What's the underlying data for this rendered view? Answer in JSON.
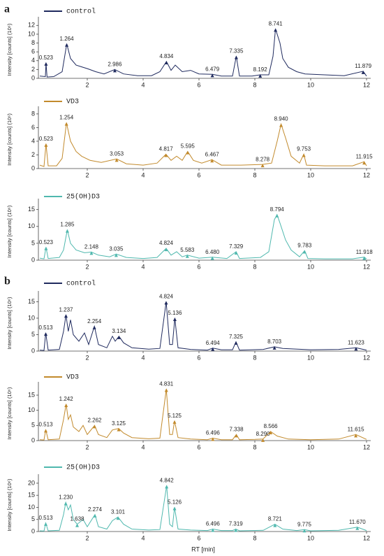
{
  "chart_data": [
    {
      "type": "line",
      "panel_label": "a",
      "ylabel": "Intensity [counts] (10⁶)",
      "series": [
        {
          "name": "control",
          "color": "#1f2a5e",
          "x": [
            0.3,
            0.5,
            0.523,
            0.56,
            0.8,
            1.1,
            1.264,
            1.4,
            1.6,
            1.8,
            2.0,
            2.3,
            2.6,
            2.986,
            3.3,
            3.8,
            4.3,
            4.6,
            4.834,
            5.0,
            5.15,
            5.4,
            5.7,
            6.0,
            6.479,
            6.8,
            7.2,
            7.335,
            7.45,
            7.9,
            8.192,
            8.5,
            8.65,
            8.741,
            8.9,
            9.0,
            9.2,
            9.5,
            9.8,
            10.5,
            11.2,
            11.879,
            12
          ],
          "values": [
            0.5,
            0.4,
            3.5,
            0.3,
            0.4,
            1.5,
            7.8,
            4.5,
            3.0,
            2.6,
            2.2,
            1.5,
            1.0,
            2.0,
            1.0,
            0.6,
            0.6,
            1.5,
            3.8,
            1.8,
            3.0,
            1.5,
            1.8,
            1.0,
            0.9,
            0.5,
            0.5,
            5.0,
            0.5,
            0.5,
            0.8,
            0.8,
            5.0,
            11.2,
            8.0,
            4.5,
            2.5,
            1.5,
            1.0,
            0.8,
            0.6,
            1.6,
            0.5
          ]
        }
      ],
      "peaks": [
        {
          "x": 0.523,
          "label": "0.523",
          "y": 3.5
        },
        {
          "x": 1.264,
          "label": "1.264",
          "y": 7.8
        },
        {
          "x": 2.986,
          "label": "2.986",
          "y": 2.0
        },
        {
          "x": 4.834,
          "label": "4.834",
          "y": 3.8
        },
        {
          "x": 6.479,
          "label": "6.479",
          "y": 0.9
        },
        {
          "x": 7.335,
          "label": "7.335",
          "y": 5.0
        },
        {
          "x": 8.192,
          "label": "8.192",
          "y": 0.8
        },
        {
          "x": 8.741,
          "label": "8.741",
          "y": 11.2
        },
        {
          "x": 11.879,
          "label": "11.879",
          "y": 1.6
        }
      ],
      "xlim": [
        0.25,
        12.05
      ],
      "xticks": [
        2,
        4,
        6,
        8,
        10,
        12
      ],
      "ylim": [
        0,
        13
      ],
      "yticks": [
        0,
        2,
        4,
        6,
        8,
        10,
        12
      ]
    },
    {
      "type": "line",
      "ylabel": "Intensity [counts] (10⁶)",
      "series": [
        {
          "name": "VD3",
          "color": "#c28a2c",
          "x": [
            0.3,
            0.45,
            0.523,
            0.6,
            0.9,
            1.1,
            1.254,
            1.4,
            1.6,
            1.8,
            2.1,
            2.5,
            3.053,
            3.4,
            4.0,
            4.5,
            4.817,
            5.0,
            5.2,
            5.4,
            5.595,
            5.8,
            6.1,
            6.467,
            6.8,
            7.5,
            8.278,
            8.6,
            8.8,
            8.94,
            9.1,
            9.3,
            9.6,
            9.753,
            9.85,
            10.5,
            11.5,
            11.915,
            12
          ],
          "values": [
            0.5,
            0.3,
            3.6,
            0.4,
            0.4,
            1.5,
            6.7,
            4.0,
            2.5,
            1.8,
            1.2,
            0.9,
            1.4,
            0.7,
            0.5,
            0.8,
            2.1,
            1.2,
            1.8,
            1.2,
            2.5,
            1.2,
            0.8,
            1.3,
            0.5,
            0.5,
            0.6,
            0.8,
            4.0,
            6.5,
            4.5,
            1.8,
            0.8,
            2.1,
            0.5,
            0.4,
            0.4,
            1.0,
            0.4
          ]
        }
      ],
      "peaks": [
        {
          "x": 0.523,
          "label": "0.523",
          "y": 3.6
        },
        {
          "x": 1.254,
          "label": "1.254",
          "y": 6.7
        },
        {
          "x": 3.053,
          "label": "3.053",
          "y": 1.4
        },
        {
          "x": 4.817,
          "label": "4.817",
          "y": 2.1
        },
        {
          "x": 5.595,
          "label": "5.595",
          "y": 2.5
        },
        {
          "x": 6.467,
          "label": "6.467",
          "y": 1.3
        },
        {
          "x": 8.278,
          "label": "8.278",
          "y": 0.6
        },
        {
          "x": 8.94,
          "label": "8.940",
          "y": 6.5
        },
        {
          "x": 9.753,
          "label": "9.753",
          "y": 2.1
        },
        {
          "x": 11.915,
          "label": "11.915",
          "y": 1.0
        }
      ],
      "xlim": [
        0.25,
        12.05
      ],
      "xticks": [
        2,
        4,
        6,
        8,
        10,
        12
      ],
      "ylim": [
        0,
        8.5
      ],
      "yticks": [
        0,
        2,
        4,
        6,
        8
      ]
    },
    {
      "type": "line",
      "ylabel": "Intensity [counts] (10⁶)",
      "series": [
        {
          "name": "25(OH)D3",
          "color": "#4fb8ae",
          "x": [
            0.3,
            0.45,
            0.523,
            0.6,
            1.0,
            1.15,
            1.285,
            1.4,
            1.6,
            1.9,
            2.148,
            2.4,
            2.8,
            3.035,
            3.4,
            4.0,
            4.5,
            4.824,
            5.0,
            5.2,
            5.4,
            5.583,
            6.0,
            6.48,
            7.0,
            7.329,
            7.45,
            8.2,
            8.5,
            8.7,
            8.794,
            8.9,
            9.1,
            9.3,
            9.6,
            9.783,
            9.9,
            10.5,
            11.5,
            11.918,
            12
          ],
          "values": [
            0.6,
            0.4,
            3.8,
            0.5,
            0.8,
            3.0,
            9.0,
            5.0,
            3.0,
            2.2,
            2.4,
            1.5,
            1.0,
            1.8,
            0.8,
            0.5,
            0.8,
            3.5,
            1.5,
            2.5,
            1.0,
            1.5,
            0.6,
            0.9,
            0.5,
            2.5,
            0.5,
            0.8,
            2.5,
            12.0,
            13.5,
            11.0,
            6.0,
            3.0,
            1.0,
            2.8,
            0.5,
            0.4,
            0.4,
            0.9,
            0.4
          ]
        }
      ],
      "peaks": [
        {
          "x": 0.523,
          "label": "0.523",
          "y": 3.8
        },
        {
          "x": 1.285,
          "label": "1.285",
          "y": 9.0
        },
        {
          "x": 2.148,
          "label": "2.148",
          "y": 2.4
        },
        {
          "x": 3.035,
          "label": "3.035",
          "y": 1.8
        },
        {
          "x": 4.824,
          "label": "4.824",
          "y": 3.5
        },
        {
          "x": 5.583,
          "label": "5.583",
          "y": 1.5
        },
        {
          "x": 6.48,
          "label": "6.480",
          "y": 0.9
        },
        {
          "x": 7.329,
          "label": "7.329",
          "y": 2.5
        },
        {
          "x": 8.794,
          "label": "8.794",
          "y": 13.5
        },
        {
          "x": 9.783,
          "label": "9.783",
          "y": 2.8
        },
        {
          "x": 11.918,
          "label": "11.918",
          "y": 0.9
        }
      ],
      "xlim": [
        0.25,
        12.05
      ],
      "xticks": [
        2,
        4,
        6,
        8,
        10,
        12
      ],
      "ylim": [
        0,
        17
      ],
      "yticks": [
        0,
        5,
        10,
        15
      ]
    },
    {
      "type": "line",
      "panel_label": "b",
      "ylabel": "Intensity [counts] (10⁶)",
      "series": [
        {
          "name": "control",
          "color": "#1f2a5e",
          "x": [
            0.3,
            0.45,
            0.513,
            0.6,
            1.0,
            1.15,
            1.237,
            1.32,
            1.4,
            1.5,
            1.7,
            1.9,
            2.05,
            2.254,
            2.4,
            2.7,
            2.9,
            3.0,
            3.134,
            3.3,
            3.6,
            4.2,
            4.6,
            4.824,
            4.95,
            5.05,
            5.136,
            5.25,
            5.7,
            6.3,
            6.494,
            6.8,
            7.2,
            7.325,
            7.45,
            8.3,
            8.703,
            9.0,
            10.0,
            11.0,
            11.623,
            12
          ],
          "values": [
            0.3,
            0.2,
            5.5,
            0.3,
            0.5,
            6.0,
            11.0,
            6.0,
            9.5,
            5.0,
            3.0,
            5.5,
            2.0,
            7.5,
            2.0,
            1.0,
            4.5,
            3.0,
            4.5,
            2.5,
            1.0,
            0.6,
            0.8,
            15.0,
            2.0,
            2.0,
            10.0,
            1.0,
            0.5,
            0.3,
            0.9,
            0.4,
            0.4,
            2.8,
            0.3,
            0.5,
            1.3,
            0.8,
            0.4,
            0.5,
            1.0,
            0.3
          ]
        }
      ],
      "peaks": [
        {
          "x": 0.513,
          "label": "0.513",
          "y": 5.5
        },
        {
          "x": 1.237,
          "label": "1.237",
          "y": 11.0
        },
        {
          "x": 2.254,
          "label": "2.254",
          "y": 7.5
        },
        {
          "x": 3.134,
          "label": "3.134",
          "y": 4.5
        },
        {
          "x": 4.824,
          "label": "4.824",
          "y": 15.0
        },
        {
          "x": 5.136,
          "label": "5.136",
          "y": 10.0
        },
        {
          "x": 6.494,
          "label": "6.494",
          "y": 0.9
        },
        {
          "x": 7.325,
          "label": "7.325",
          "y": 2.8
        },
        {
          "x": 8.703,
          "label": "8.703",
          "y": 1.3
        },
        {
          "x": 11.623,
          "label": "11.623",
          "y": 1.0
        }
      ],
      "xlim": [
        0.25,
        12.05
      ],
      "xticks": [
        2,
        4,
        6,
        8,
        10,
        12
      ],
      "ylim": [
        0,
        17
      ],
      "yticks": [
        0,
        5,
        10,
        15
      ]
    },
    {
      "type": "line",
      "ylabel": "Intensity [counts] (10⁶)",
      "series": [
        {
          "name": "VD3",
          "color": "#c28a2c",
          "x": [
            0.3,
            0.45,
            0.513,
            0.6,
            1.0,
            1.15,
            1.242,
            1.32,
            1.4,
            1.5,
            1.7,
            1.85,
            2.0,
            2.262,
            2.4,
            2.7,
            2.9,
            3.125,
            3.3,
            3.6,
            4.2,
            4.6,
            4.831,
            4.95,
            5.05,
            5.125,
            5.25,
            5.7,
            6.3,
            6.496,
            6.8,
            7.2,
            7.338,
            7.45,
            8.0,
            8.29,
            8.566,
            8.8,
            9.2,
            10.0,
            11.0,
            11.615,
            12
          ],
          "values": [
            0.3,
            0.2,
            3.6,
            0.3,
            0.5,
            7.0,
            12.0,
            7.0,
            8.5,
            4.5,
            3.0,
            5.0,
            2.0,
            5.0,
            2.0,
            1.0,
            3.5,
            4.0,
            2.5,
            1.0,
            0.6,
            0.8,
            17.0,
            2.0,
            2.0,
            6.5,
            1.0,
            0.5,
            0.3,
            0.8,
            0.3,
            0.3,
            2.0,
            0.3,
            0.4,
            0.5,
            3.0,
            1.5,
            0.5,
            0.3,
            0.5,
            2.0,
            0.4
          ]
        }
      ],
      "peaks": [
        {
          "x": 0.513,
          "label": "0.513",
          "y": 3.6
        },
        {
          "x": 1.242,
          "label": "1.242",
          "y": 12.0
        },
        {
          "x": 2.262,
          "label": "2.262",
          "y": 5.0
        },
        {
          "x": 3.125,
          "label": "3.125",
          "y": 4.0
        },
        {
          "x": 4.831,
          "label": "4.831",
          "y": 17.0
        },
        {
          "x": 5.125,
          "label": "5.125",
          "y": 6.5
        },
        {
          "x": 6.496,
          "label": "6.496",
          "y": 0.8
        },
        {
          "x": 7.338,
          "label": "7.338",
          "y": 2.0
        },
        {
          "x": 8.29,
          "label": "8.290",
          "y": 0.5
        },
        {
          "x": 8.566,
          "label": "8.566",
          "y": 3.0
        },
        {
          "x": 11.615,
          "label": "11.615",
          "y": 2.0
        }
      ],
      "xlim": [
        0.25,
        12.05
      ],
      "xticks": [
        2,
        4,
        6,
        8,
        10,
        12
      ],
      "ylim": [
        0,
        18
      ],
      "yticks": [
        0,
        5,
        10,
        15
      ]
    },
    {
      "type": "line",
      "ylabel": "Intensity [counts] (10⁶)",
      "xlabel": "RT [min]",
      "series": [
        {
          "name": "25(OH)D3",
          "color": "#4fb8ae",
          "x": [
            0.3,
            0.45,
            0.513,
            0.6,
            1.0,
            1.15,
            1.23,
            1.32,
            1.4,
            1.5,
            1.638,
            1.85,
            2.0,
            2.274,
            2.4,
            2.7,
            2.9,
            3.101,
            3.3,
            3.6,
            4.2,
            4.6,
            4.842,
            4.95,
            5.05,
            5.126,
            5.25,
            5.7,
            6.3,
            6.496,
            6.8,
            7.2,
            7.319,
            7.45,
            8.3,
            8.721,
            9.0,
            9.5,
            9.775,
            10.0,
            11.0,
            11.67,
            12
          ],
          "values": [
            0.3,
            0.2,
            3.5,
            0.3,
            0.5,
            7.0,
            12.0,
            9.0,
            11.0,
            5.0,
            3.0,
            5.0,
            2.0,
            7.0,
            2.0,
            1.0,
            4.5,
            6.0,
            3.0,
            1.0,
            0.6,
            0.8,
            19.0,
            3.0,
            2.0,
            10.0,
            1.0,
            0.6,
            0.4,
            1.0,
            0.4,
            0.4,
            1.0,
            0.3,
            0.5,
            3.0,
            1.0,
            0.4,
            0.8,
            0.3,
            0.5,
            1.8,
            0.4
          ]
        }
      ],
      "peaks": [
        {
          "x": 0.513,
          "label": "0.513",
          "y": 3.5
        },
        {
          "x": 1.23,
          "label": "1.230",
          "y": 12.0
        },
        {
          "x": 1.638,
          "label": "1.638",
          "y": 3.0
        },
        {
          "x": 2.274,
          "label": "2.274",
          "y": 7.0
        },
        {
          "x": 3.101,
          "label": "3.101",
          "y": 6.0
        },
        {
          "x": 4.842,
          "label": "4.842",
          "y": 19.0
        },
        {
          "x": 5.126,
          "label": "5.126",
          "y": 10.0
        },
        {
          "x": 6.496,
          "label": "6.496",
          "y": 1.0
        },
        {
          "x": 7.319,
          "label": "7.319",
          "y": 1.0
        },
        {
          "x": 8.721,
          "label": "8.721",
          "y": 3.0
        },
        {
          "x": 9.775,
          "label": "9.775",
          "y": 0.8
        },
        {
          "x": 11.67,
          "label": "11.670",
          "y": 1.8
        }
      ],
      "xlim": [
        0.25,
        12.05
      ],
      "xticks": [
        2,
        4,
        6,
        8,
        10,
        12
      ],
      "ylim": [
        0,
        22
      ],
      "yticks": [
        0,
        5,
        10,
        15,
        20
      ]
    }
  ]
}
